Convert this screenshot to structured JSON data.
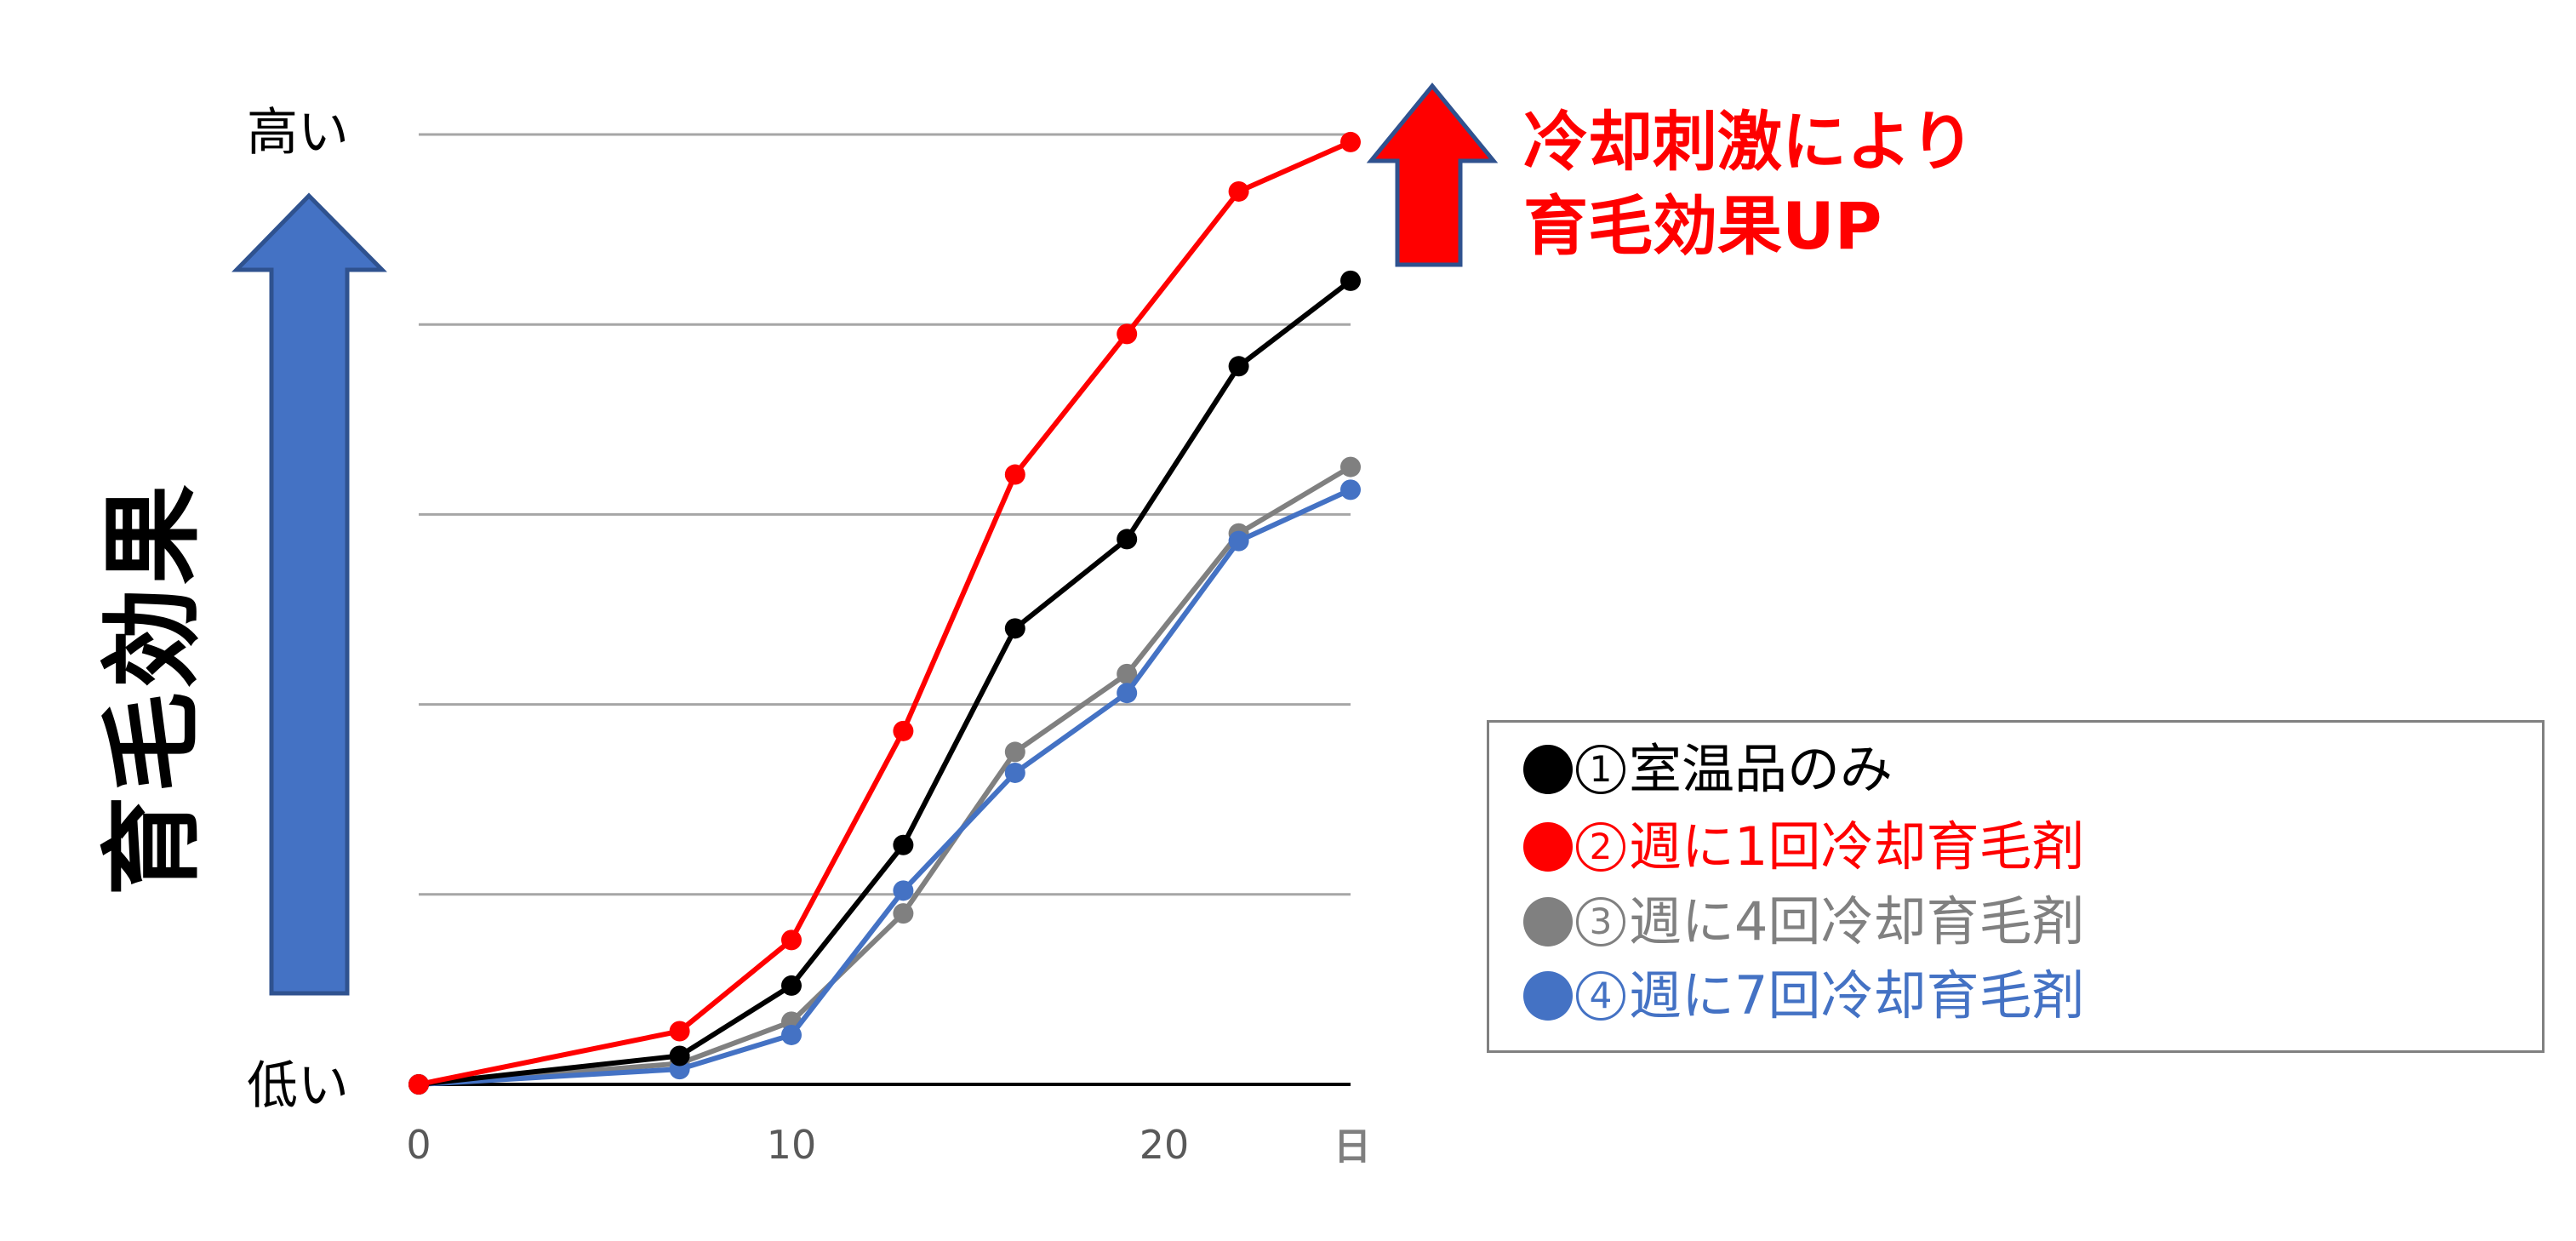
{
  "chart_data": {
    "type": "line",
    "title": "",
    "xlabel": "日",
    "ylabel": "育毛効果",
    "x_ticks": [
      "0",
      "10",
      "20"
    ],
    "x_unit": "日",
    "y_tick_labels": {
      "top": "高い",
      "bottom": "低い"
    },
    "xlim": [
      0,
      25
    ],
    "ylim": [
      0,
      5
    ],
    "grid": true,
    "legend_position": "right",
    "x": [
      0,
      7,
      10,
      13,
      16,
      19,
      22,
      25
    ],
    "series": [
      {
        "name": "①室温品のみ",
        "color": "#000000",
        "values": [
          0,
          0.15,
          0.52,
          1.26,
          2.4,
          2.87,
          3.78,
          4.23
        ]
      },
      {
        "name": "②週に1回冷却育毛剤",
        "color": "#ff0000",
        "values": [
          0,
          0.28,
          0.76,
          1.86,
          3.21,
          3.95,
          4.7,
          4.96
        ]
      },
      {
        "name": "③週に4回冷却育毛剤",
        "color": "#808080",
        "values": [
          0,
          0.11,
          0.33,
          0.9,
          1.75,
          2.16,
          2.9,
          3.25
        ]
      },
      {
        "name": "④週に7回冷却育毛剤",
        "color": "#4472c4",
        "values": [
          0,
          0.08,
          0.26,
          1.02,
          1.64,
          2.06,
          2.86,
          3.13
        ]
      }
    ],
    "annotations": [
      {
        "text": "冷却刺激により育毛効果UP",
        "color": "#ff0000",
        "shape": "up-arrow"
      }
    ]
  },
  "labels": {
    "y_high": "高い",
    "y_low": "低い",
    "y_title": "育毛効果",
    "x_tick_0": "0",
    "x_tick_10": "10",
    "x_tick_20": "20",
    "x_unit": "日"
  },
  "annotation": {
    "line1": "冷却刺激により",
    "line2": "育毛効果UP"
  },
  "legend": {
    "items": [
      {
        "dot": "●",
        "num": "1",
        "text": "室温品のみ",
        "color": "#000000"
      },
      {
        "dot": "●",
        "num": "2",
        "text": "週に1回冷却育毛剤",
        "color": "#ff0000"
      },
      {
        "dot": "●",
        "num": "3",
        "text": "週に4回冷却育毛剤",
        "color": "#808080"
      },
      {
        "dot": "●",
        "num": "4",
        "text": "週に7回冷却育毛剤",
        "color": "#4472c4"
      }
    ]
  },
  "colors": {
    "blue_arrow": "#4472c4",
    "blue_arrow_border": "#2f528f",
    "red_arrow": "#ff0000",
    "gridline": "#a6a6a6",
    "axis": "#000000"
  }
}
